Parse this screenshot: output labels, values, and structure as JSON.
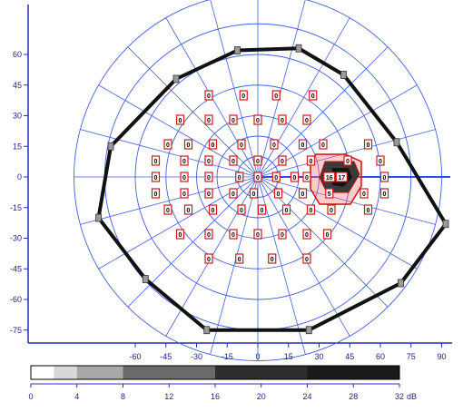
{
  "chart_data": {
    "type": "scatter",
    "x_ticks": [
      "-60",
      "-45",
      "-30",
      "-15",
      "0",
      "15",
      "30",
      "45",
      "60",
      "75",
      "90"
    ],
    "y_ticks": [
      "60",
      "45",
      "30",
      "15",
      "0",
      "-15",
      "-30",
      "-45",
      "-60",
      "-75"
    ],
    "scale_ticks": [
      "0",
      "4",
      "8",
      "12",
      "16",
      "20",
      "24",
      "28",
      "32"
    ],
    "scale_unit": "dB",
    "grid": true,
    "isopter_points_deg": [
      [
        -40,
        48
      ],
      [
        -10,
        62
      ],
      [
        20,
        63
      ],
      [
        42,
        50
      ],
      [
        68,
        17
      ],
      [
        92,
        -23
      ],
      [
        70,
        -52
      ],
      [
        25,
        -75
      ],
      [
        -25,
        -75
      ],
      [
        -55,
        -50
      ],
      [
        -78,
        -20
      ],
      [
        -72,
        15
      ]
    ],
    "threshold_points": [
      [
        -24,
        40,
        "0"
      ],
      [
        -7,
        40,
        "0"
      ],
      [
        9,
        40,
        "0"
      ],
      [
        27,
        40,
        "0"
      ],
      [
        -38,
        28,
        "0"
      ],
      [
        -24,
        28,
        "0"
      ],
      [
        -12,
        28,
        "0"
      ],
      [
        0,
        28,
        "0"
      ],
      [
        12,
        28,
        "0"
      ],
      [
        24,
        28,
        "0"
      ],
      [
        -44,
        16,
        "0"
      ],
      [
        -34,
        16,
        "0"
      ],
      [
        -22,
        16,
        "0"
      ],
      [
        -8,
        16,
        "0"
      ],
      [
        8,
        16,
        "0"
      ],
      [
        22,
        16,
        "0"
      ],
      [
        32,
        16,
        "0"
      ],
      [
        54,
        16,
        "0"
      ],
      [
        -50,
        8,
        "0"
      ],
      [
        -36,
        8,
        "0"
      ],
      [
        -24,
        8,
        "0"
      ],
      [
        -12,
        8,
        "0"
      ],
      [
        0,
        8,
        "0"
      ],
      [
        12,
        8,
        "0"
      ],
      [
        26,
        8,
        "0"
      ],
      [
        44,
        8,
        "0"
      ],
      [
        60,
        8,
        "0"
      ],
      [
        -50,
        0,
        "0"
      ],
      [
        -36,
        0,
        "0"
      ],
      [
        -24,
        0,
        "0"
      ],
      [
        -9,
        0,
        "0"
      ],
      [
        0,
        0,
        "0"
      ],
      [
        9,
        0,
        "0"
      ],
      [
        18,
        0,
        "0"
      ],
      [
        24,
        0,
        "0"
      ],
      [
        35,
        0,
        "16"
      ],
      [
        41,
        0,
        "17"
      ],
      [
        62,
        0,
        "0"
      ],
      [
        -50,
        -8,
        "0"
      ],
      [
        -36,
        -8,
        "0"
      ],
      [
        -24,
        -8,
        "0"
      ],
      [
        -12,
        -8,
        "0"
      ],
      [
        -2,
        -8,
        "0"
      ],
      [
        10,
        -8,
        "0"
      ],
      [
        22,
        -8,
        "0"
      ],
      [
        35,
        -8,
        "5"
      ],
      [
        52,
        -8,
        "0"
      ],
      [
        62,
        -8,
        "0"
      ],
      [
        -44,
        -16,
        "0"
      ],
      [
        -34,
        -16,
        "0"
      ],
      [
        -22,
        -16,
        "0"
      ],
      [
        -8,
        -16,
        "0"
      ],
      [
        2,
        -16,
        "0"
      ],
      [
        14,
        -16,
        "0"
      ],
      [
        26,
        -16,
        "0"
      ],
      [
        36,
        -16,
        "0"
      ],
      [
        54,
        -16,
        "0"
      ],
      [
        -38,
        -28,
        "0"
      ],
      [
        -24,
        -28,
        "0"
      ],
      [
        -12,
        -28,
        "0"
      ],
      [
        0,
        -28,
        "0"
      ],
      [
        12,
        -28,
        "0"
      ],
      [
        24,
        -28,
        "0"
      ],
      [
        34,
        -28,
        "0"
      ],
      [
        -24,
        -40,
        "0"
      ],
      [
        -9,
        -40,
        "0"
      ],
      [
        7,
        -40,
        "0"
      ],
      [
        24,
        -40,
        "0"
      ]
    ]
  }
}
